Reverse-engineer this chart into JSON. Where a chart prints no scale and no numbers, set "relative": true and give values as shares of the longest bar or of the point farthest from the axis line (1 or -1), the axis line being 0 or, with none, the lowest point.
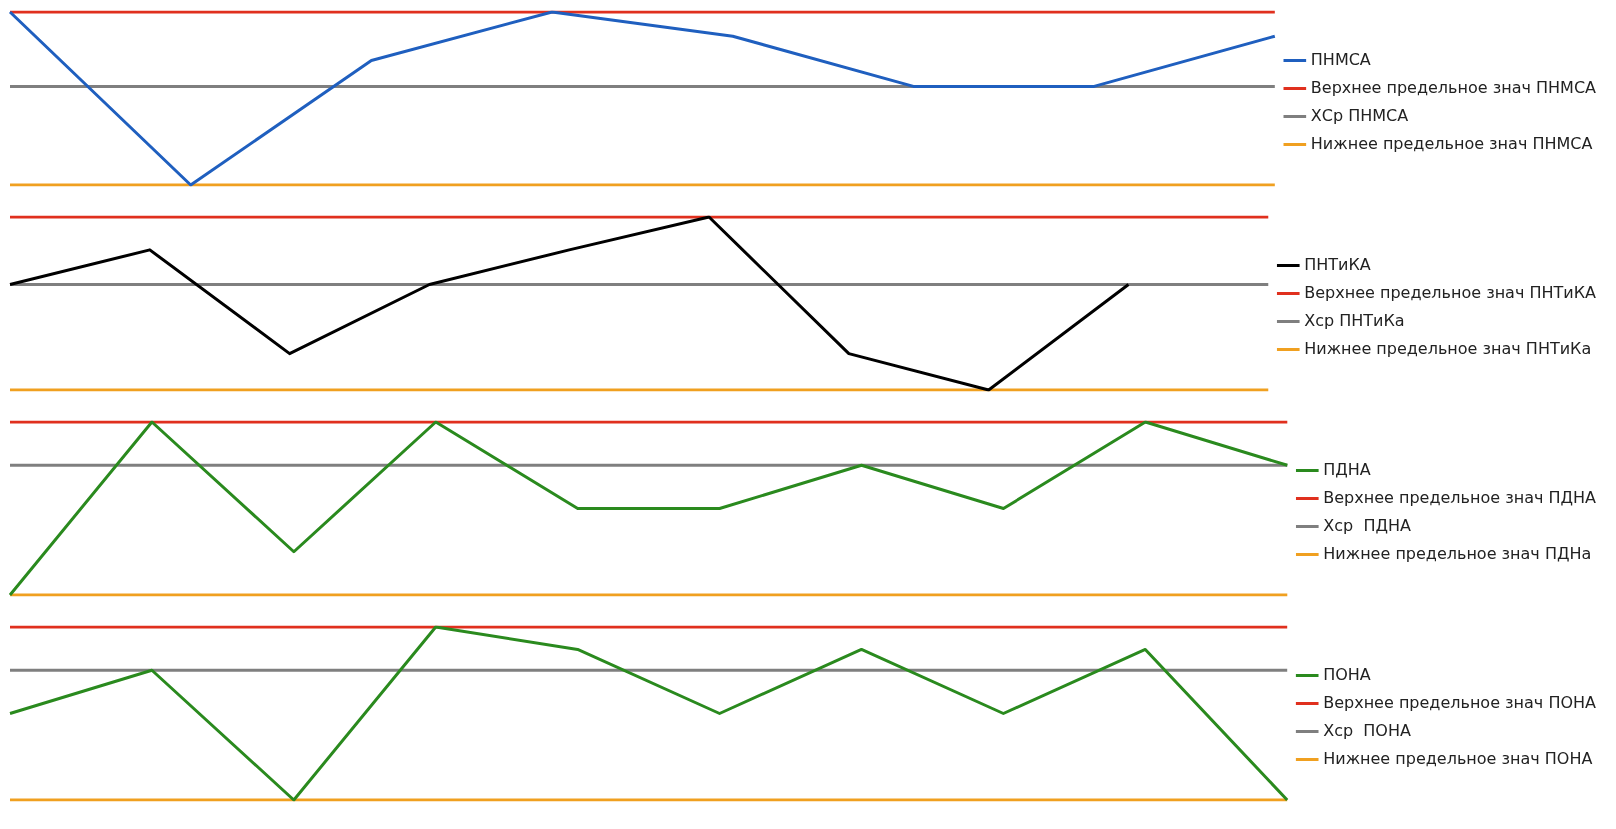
{
  "chart_data": [
    {
      "type": "line",
      "relative": true,
      "legend": "right",
      "marker": "none",
      "categories": [
        null,
        null,
        null,
        null,
        null,
        null,
        null,
        null
      ],
      "series": [
        {
          "name": "ПНМСА",
          "color": "#1f5fbf",
          "values": [
            1,
            0,
            0.72,
            1,
            0.86,
            0.57,
            0.57,
            0.86
          ]
        },
        {
          "name": "Верхнее предельное знач ПНМСА",
          "color": "#e0301e",
          "values": [
            1,
            1,
            1,
            1,
            1,
            1,
            1,
            1
          ]
        },
        {
          "name": "ХСр ПНМСА",
          "color": "#7f7f7f",
          "values": [
            0.57,
            0.57,
            0.57,
            0.57,
            0.57,
            0.57,
            0.57,
            0.57
          ]
        },
        {
          "name": "Нижнее предельное знач ПНМСА",
          "color": "#f0a020",
          "values": [
            0,
            0,
            0,
            0,
            0,
            0,
            0,
            0
          ]
        }
      ]
    },
    {
      "type": "line",
      "relative": true,
      "legend": "right",
      "marker": "none",
      "categories": [
        null,
        null,
        null,
        null,
        null,
        null,
        null,
        null,
        null,
        null
      ],
      "series": [
        {
          "name": "ПНТиКА",
          "color": "#000000",
          "values": [
            0.61,
            0.81,
            0.21,
            0.61,
            0.81,
            1,
            0.21,
            0,
            0.61,
            null
          ]
        },
        {
          "name": "Верхнее предельное знач ПНТиКА",
          "color": "#e0301e",
          "values": [
            1,
            1,
            1,
            1,
            1,
            1,
            1,
            1,
            1,
            1
          ]
        },
        {
          "name": "Хср ПНТиКа",
          "color": "#7f7f7f",
          "values": [
            0.61,
            0.61,
            0.61,
            0.61,
            0.61,
            0.61,
            0.61,
            0.61,
            0.61,
            0.61
          ]
        },
        {
          "name": "Нижнее предельное знач ПНТиКа",
          "color": "#f0a020",
          "values": [
            0,
            0,
            0,
            0,
            0,
            0,
            0,
            0,
            0,
            0
          ]
        }
      ]
    },
    {
      "type": "line",
      "relative": true,
      "legend": "right",
      "marker": "none",
      "categories": [
        null,
        null,
        null,
        null,
        null,
        null,
        null,
        null,
        null,
        null
      ],
      "series": [
        {
          "name": "ПДНА",
          "color": "#2a8a1e",
          "values": [
            0,
            1,
            0.25,
            1,
            0.5,
            0.5,
            0.75,
            0.5,
            1,
            0.75
          ]
        },
        {
          "name": "Верхнее предельное знач ПДНА",
          "color": "#e0301e",
          "values": [
            1,
            1,
            1,
            1,
            1,
            1,
            1,
            1,
            1,
            1
          ]
        },
        {
          "name": "Хср  ПДНА",
          "color": "#7f7f7f",
          "values": [
            0.75,
            0.75,
            0.75,
            0.75,
            0.75,
            0.75,
            0.75,
            0.75,
            0.75,
            0.75
          ]
        },
        {
          "name": "Нижнее предельное знач ПДНа",
          "color": "#f0a020",
          "values": [
            0,
            0,
            0,
            0,
            0,
            0,
            0,
            0,
            0,
            0
          ]
        }
      ]
    },
    {
      "type": "line",
      "relative": true,
      "legend": "right",
      "marker": "none",
      "categories": [
        null,
        null,
        null,
        null,
        null,
        null,
        null,
        null,
        null,
        null
      ],
      "series": [
        {
          "name": "ПОНА",
          "color": "#2a8a1e",
          "values": [
            0.5,
            0.75,
            0,
            1,
            0.87,
            0.5,
            0.87,
            0.5,
            0.87,
            0
          ]
        },
        {
          "name": "Верхнее предельное знач ПОНА",
          "color": "#e0301e",
          "values": [
            1,
            1,
            1,
            1,
            1,
            1,
            1,
            1,
            1,
            1
          ]
        },
        {
          "name": "Хср  ПОНА",
          "color": "#7f7f7f",
          "values": [
            0.75,
            0.75,
            0.75,
            0.75,
            0.75,
            0.75,
            0.75,
            0.75,
            0.75,
            0.75
          ]
        },
        {
          "name": "Нижнее предельное знач ПОНА",
          "color": "#f0a020",
          "values": [
            0,
            0,
            0,
            0,
            0,
            0,
            0,
            0,
            0,
            0
          ]
        }
      ]
    }
  ]
}
